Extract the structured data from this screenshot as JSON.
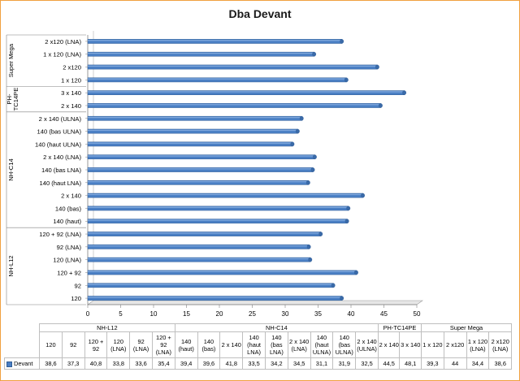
{
  "chart_data": {
    "type": "bar",
    "orientation": "horizontal",
    "title": "Dba Devant",
    "xlim": [
      0,
      50
    ],
    "x_ticks": [
      "0",
      "5",
      "10",
      "15",
      "20",
      "25",
      "30",
      "35",
      "40",
      "45",
      "50"
    ],
    "grid": false,
    "legend": "bottom-left",
    "series": [
      {
        "name": "Devant",
        "color": "#4a7fc4",
        "values_display": [
          "38,6",
          "37,3",
          "40,8",
          "33,8",
          "33,6",
          "35,4",
          "39,4",
          "39,6",
          "41,8",
          "33,5",
          "34,2",
          "34,5",
          "31,1",
          "31,9",
          "32,5",
          "44,5",
          "48,1",
          "39,3",
          "44",
          "34,4",
          "38,6"
        ],
        "values": [
          38.6,
          37.3,
          40.8,
          33.8,
          33.6,
          35.4,
          39.4,
          39.6,
          41.8,
          33.5,
          34.2,
          34.5,
          31.1,
          31.9,
          32.5,
          44.5,
          48.1,
          39.3,
          44,
          34.4,
          38.6
        ]
      }
    ],
    "groups": [
      {
        "name": "NH-L12",
        "axis_label": "NH-L12",
        "categories": [
          {
            "axis": "120",
            "table": [
              "120"
            ]
          },
          {
            "axis": "92",
            "table": [
              "92"
            ]
          },
          {
            "axis": "120 + 92",
            "table": [
              "120 +",
              "92"
            ]
          },
          {
            "axis": "120 (LNA)",
            "table": [
              "120",
              "(LNA)"
            ]
          },
          {
            "axis": "92 (LNA)",
            "table": [
              "92",
              "(LNA)"
            ]
          },
          {
            "axis": "120 + 92 (LNA)",
            "table": [
              "120 +",
              "92",
              "(LNA)"
            ]
          }
        ]
      },
      {
        "name": "NH-C14",
        "axis_label": "NH-C14",
        "categories": [
          {
            "axis": "140 (haut)",
            "table": [
              "140",
              "(haut)"
            ]
          },
          {
            "axis": "140 (bas)",
            "table": [
              "140",
              "(bas)"
            ]
          },
          {
            "axis": "2 x 140",
            "table": [
              "2 x 140"
            ]
          },
          {
            "axis": "140 (haut LNA)",
            "table": [
              "140",
              "(haut",
              "LNA)"
            ]
          },
          {
            "axis": "140 (bas LNA)",
            "table": [
              "140",
              "(bas",
              "LNA)"
            ]
          },
          {
            "axis": "2 x 140 (LNA)",
            "table": [
              "2 x 140",
              "(LNA)"
            ]
          },
          {
            "axis": "140 (haut ULNA)",
            "table": [
              "140",
              "(haut",
              "ULNA)"
            ]
          },
          {
            "axis": "140 (bas ULNA)",
            "table": [
              "140",
              "(bas",
              "ULNA)"
            ]
          },
          {
            "axis": "2 x 140 (ULNA)",
            "table": [
              "2 x 140",
              "(ULNA)"
            ]
          }
        ]
      },
      {
        "name": "PH-TC14PE",
        "axis_label": [
          "PH-",
          "TC14PE"
        ],
        "categories": [
          {
            "axis": "2 x 140",
            "table": [
              "2 x 140"
            ]
          },
          {
            "axis": "3 x 140",
            "table": [
              "3 x 140"
            ]
          }
        ]
      },
      {
        "name": "Super Mega",
        "axis_label": "Super Mega",
        "categories": [
          {
            "axis": "1 x 120",
            "table": [
              "1 x 120"
            ]
          },
          {
            "axis": "2 x120",
            "table": [
              "2 x120"
            ]
          },
          {
            "axis": "1 x 120 (LNA)",
            "table": [
              "1 x 120",
              "(LNA)"
            ]
          },
          {
            "axis": "2 x120 (LNA)",
            "table": [
              "2 x120",
              "(LNA)"
            ]
          }
        ]
      }
    ]
  }
}
